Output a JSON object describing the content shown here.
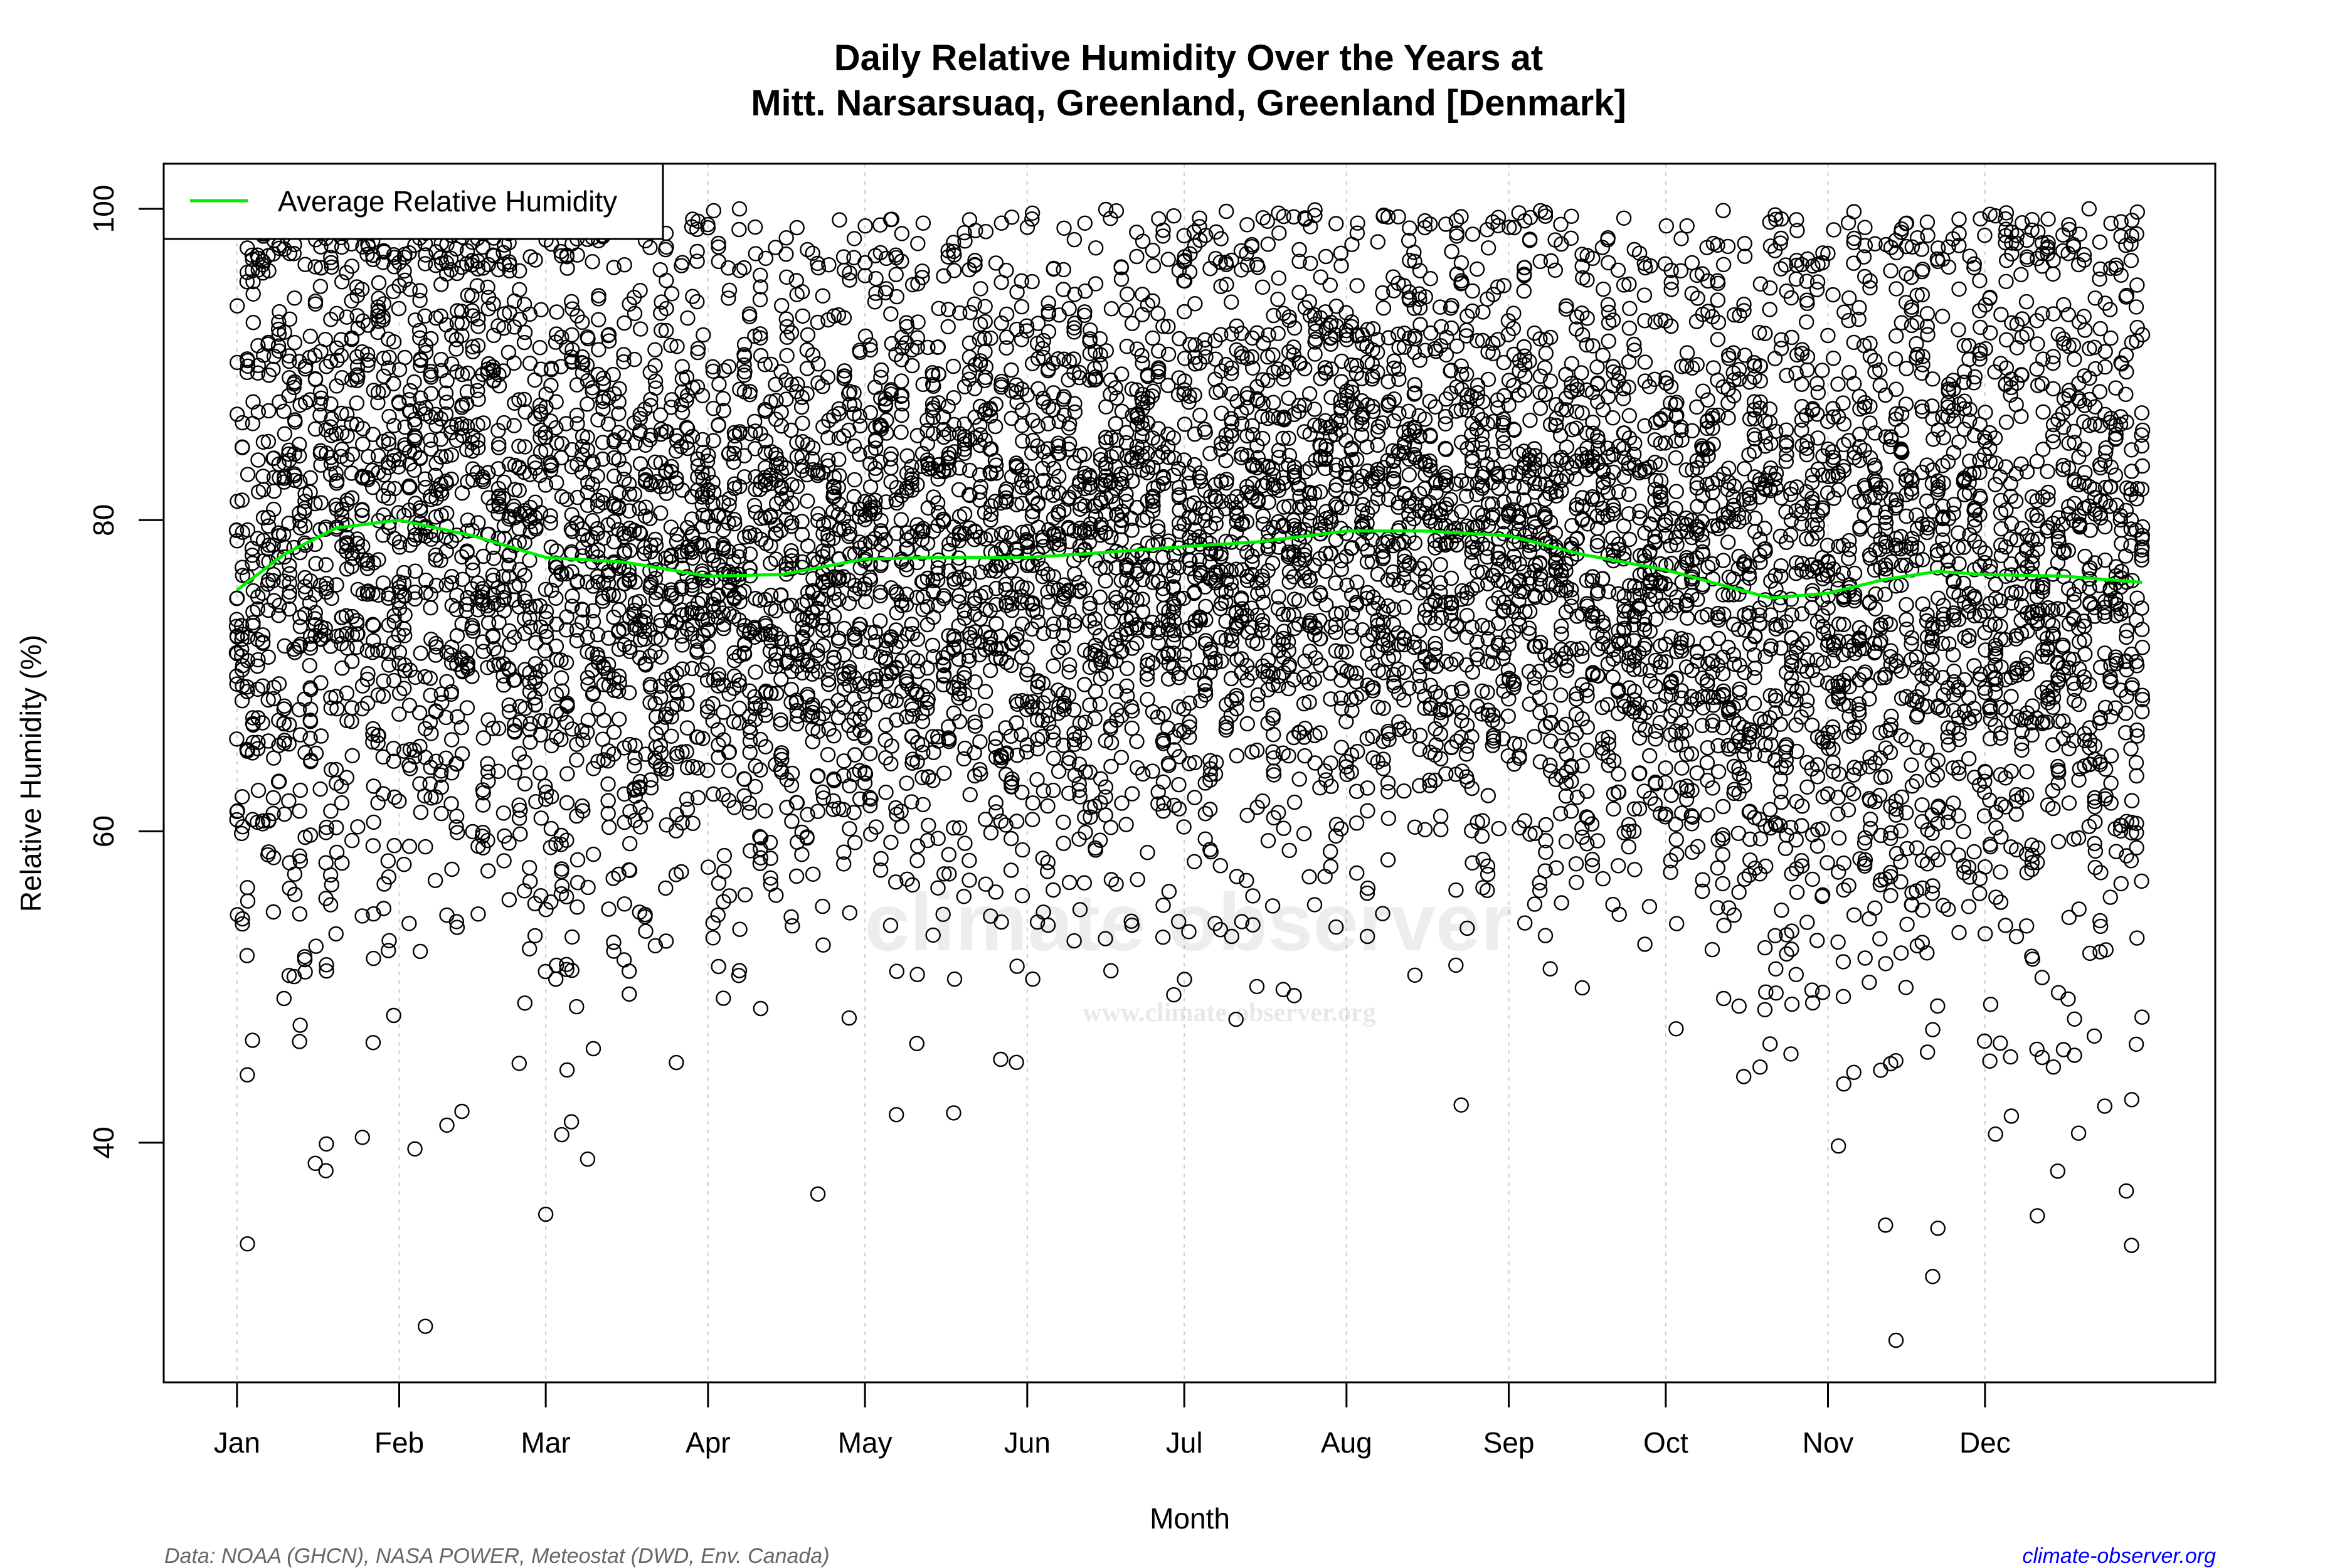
{
  "chart_data": {
    "type": "scatter",
    "title": "Daily Relative Humidity Over the Years at",
    "subtitle": "Mitt. Narsarsuaq, Greenland, Greenland [Denmark]",
    "xlabel": "Month",
    "ylabel": "Relative Humidity  (%)",
    "xlim_day_of_year": [
      -13,
      379
    ],
    "ylim": [
      24.6,
      102.9
    ],
    "x_ticks": [
      {
        "label": "Jan",
        "day": 1
      },
      {
        "label": "Feb",
        "day": 32
      },
      {
        "label": "Mar",
        "day": 60
      },
      {
        "label": "Apr",
        "day": 91
      },
      {
        "label": "May",
        "day": 121
      },
      {
        "label": "Jun",
        "day": 152
      },
      {
        "label": "Jul",
        "day": 182
      },
      {
        "label": "Aug",
        "day": 213
      },
      {
        "label": "Sep",
        "day": 244
      },
      {
        "label": "Oct",
        "day": 274
      },
      {
        "label": "Nov",
        "day": 305
      },
      {
        "label": "Dec",
        "day": 335
      }
    ],
    "y_ticks": [
      40,
      60,
      80,
      100
    ],
    "grid": "vertical dotted at month starts",
    "legend": {
      "placement": "top-left",
      "entries": [
        {
          "label": "Average Relative Humidity",
          "color": "#00ee00"
        }
      ]
    },
    "series": [
      {
        "name": "Average Relative Humidity",
        "type": "line",
        "color": "#00ee00",
        "x_day": [
          1,
          10,
          20,
          32,
          46,
          60,
          75,
          91,
          105,
          121,
          135,
          152,
          166,
          182,
          196,
          213,
          228,
          244,
          258,
          274,
          285,
          294,
          305,
          316,
          326,
          335,
          350,
          365
        ],
        "y": [
          75.5,
          77.8,
          79.5,
          80.0,
          79.0,
          77.6,
          77.3,
          76.4,
          76.5,
          77.5,
          77.6,
          77.6,
          77.9,
          78.3,
          78.6,
          79.3,
          79.3,
          79.0,
          77.8,
          76.8,
          75.8,
          75.0,
          75.3,
          76.2,
          76.7,
          76.5,
          76.4,
          76.0
        ]
      },
      {
        "type": "scatter",
        "marker": "open circle",
        "color": "#000000",
        "description_points": "daily observations, all years",
        "notable_low_points": [
          {
            "day": 3,
            "y": 33.5
          },
          {
            "day": 35,
            "y": 39.6
          },
          {
            "day": 37,
            "y": 28.2
          },
          {
            "day": 18,
            "y": 38.2
          },
          {
            "day": 60,
            "y": 35.4
          },
          {
            "day": 112,
            "y": 36.7
          },
          {
            "day": 127,
            "y": 41.8
          },
          {
            "day": 316,
            "y": 34.7
          },
          {
            "day": 318,
            "y": 27.3
          },
          {
            "day": 325,
            "y": 31.4
          },
          {
            "day": 326,
            "y": 34.5
          },
          {
            "day": 345,
            "y": 35.3
          },
          {
            "day": 363,
            "y": 33.4
          },
          {
            "day": 362,
            "y": 36.9
          }
        ]
      }
    ]
  },
  "watermark": {
    "main": "climate observer",
    "url": "www.climate-observer.org"
  },
  "footer": {
    "source": "Data: NOAA (GHCN), NASA POWER, Meteostat (DWD, Env. Canada)",
    "site": "climate-observer.org",
    "site_color": "#0000ff"
  }
}
